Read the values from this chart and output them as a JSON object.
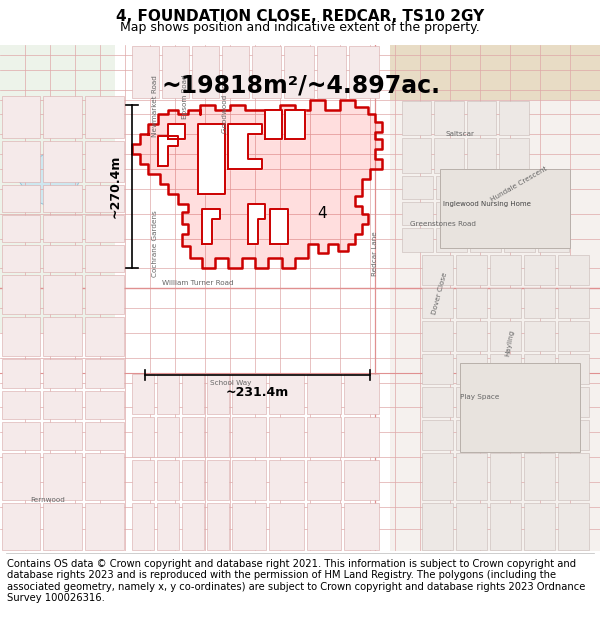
{
  "title": "4, FOUNDATION CLOSE, REDCAR, TS10 2GY",
  "subtitle": "Map shows position and indicative extent of the property.",
  "area_text": "~19818m²/~4.897ac.",
  "width_text": "~231.4m",
  "height_text": "~270.4m",
  "label_4": "4",
  "footer": "Contains OS data © Crown copyright and database right 2021. This information is subject to Crown copyright and database rights 2023 and is reproduced with the permission of HM Land Registry. The polygons (including the associated geometry, namely x, y co-ordinates) are subject to Crown copyright and database rights 2023 Ordnance Survey 100026316.",
  "bg_color": "#f5f0eb",
  "map_bg": "#f9f6f3",
  "street_color_light": "#f0d0d0",
  "street_color": "#e8b8b8",
  "highlight_color": "#cc0000",
  "highlight_fill": "#ff000022",
  "building_fill": "#f0e8e8",
  "building_edge": "#d8a0a0",
  "grey_fill": "#e8e4e0",
  "grey_edge": "#c8c0bc",
  "green_fill": "#e8f0e8",
  "water_fill": "#ddeef5",
  "sand_fill": "#e8dcc8",
  "title_fontsize": 11,
  "subtitle_fontsize": 9,
  "area_fontsize": 17,
  "label_fontsize": 11,
  "footer_fontsize": 7.2,
  "dim_fontsize": 9
}
